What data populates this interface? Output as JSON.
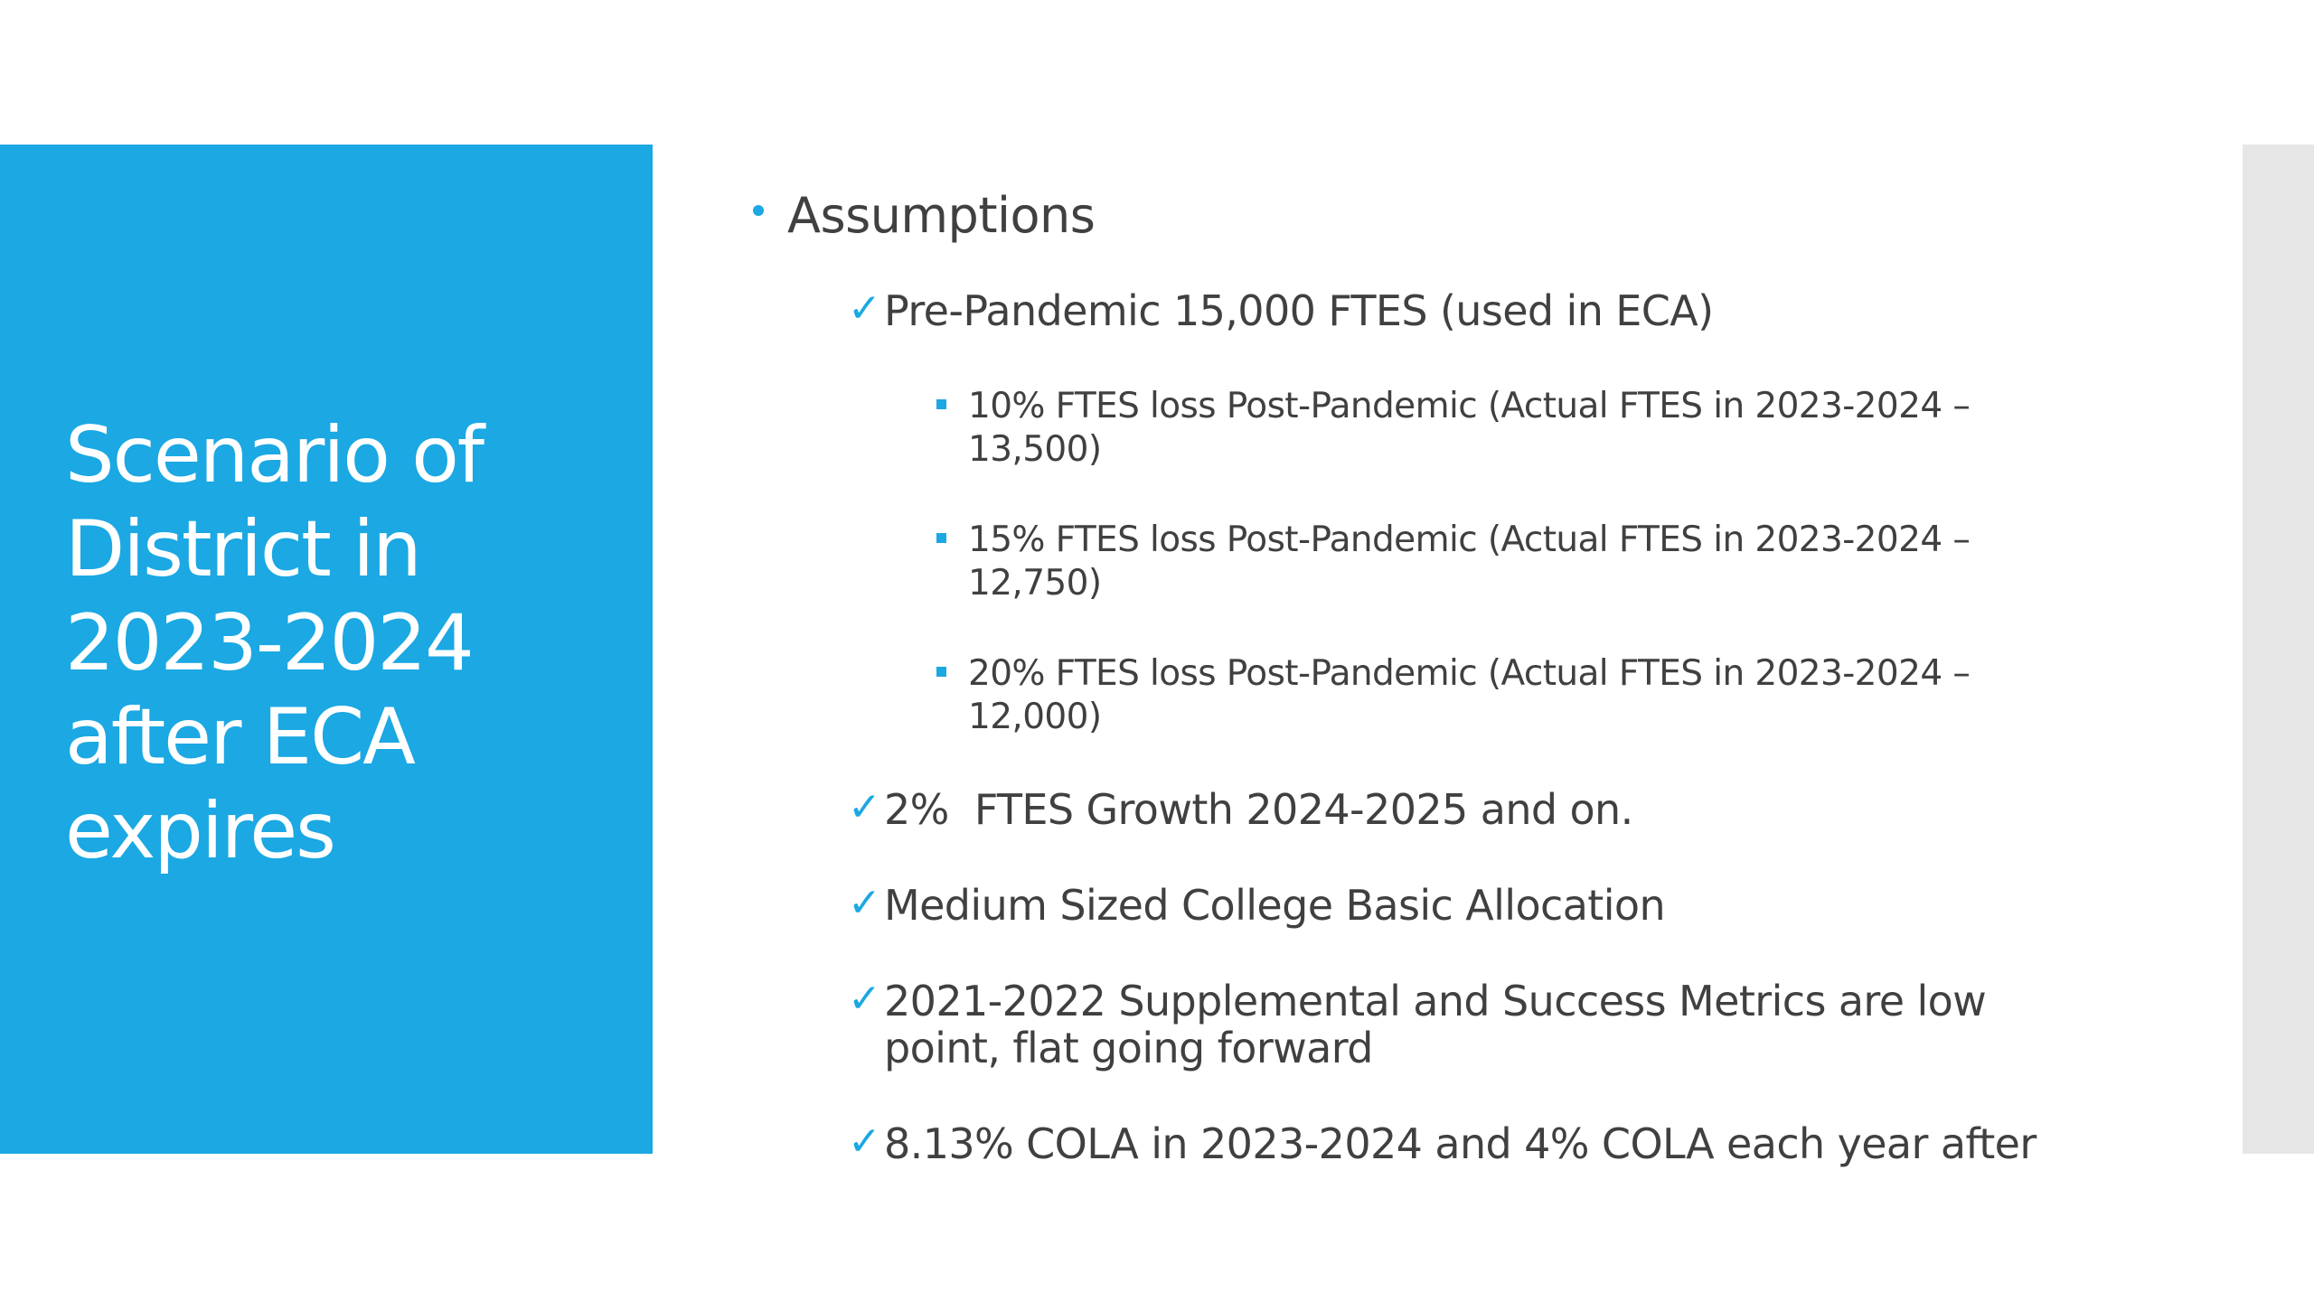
{
  "slide": {
    "title": "Scenario of District in 2023-2024 after ECA expires",
    "accent_color": "#1ba8e3",
    "strip_color": "#e6e6e6"
  },
  "content": {
    "heading": "Assumptions",
    "items": [
      {
        "level": 2,
        "marker": "check",
        "text": "Pre-Pandemic 15,000 FTES (used in ECA)"
      },
      {
        "level": 3,
        "marker": "square",
        "text": "10% FTES loss Post-Pandemic (Actual FTES in 2023-2024 – 13,500)"
      },
      {
        "level": 3,
        "marker": "square",
        "text": "15% FTES loss Post-Pandemic (Actual FTES in 2023-2024 – 12,750)"
      },
      {
        "level": 3,
        "marker": "square",
        "text": "20% FTES loss Post-Pandemic (Actual FTES in 2023-2024 – 12,000)"
      },
      {
        "level": 2,
        "marker": "check",
        "text": "2%  FTES Growth 2024-2025 and on."
      },
      {
        "level": 2,
        "marker": "check",
        "text": "Medium Sized College Basic Allocation"
      },
      {
        "level": 2,
        "marker": "check",
        "text": "2021-2022 Supplemental and Success Metrics are low point, flat going forward"
      },
      {
        "level": 2,
        "marker": "check",
        "text": "8.13% COLA in 2023-2024 and 4% COLA each year after"
      }
    ]
  },
  "icons": {
    "check": "✓",
    "bullet": "round-bullet",
    "square": "square-bullet"
  }
}
